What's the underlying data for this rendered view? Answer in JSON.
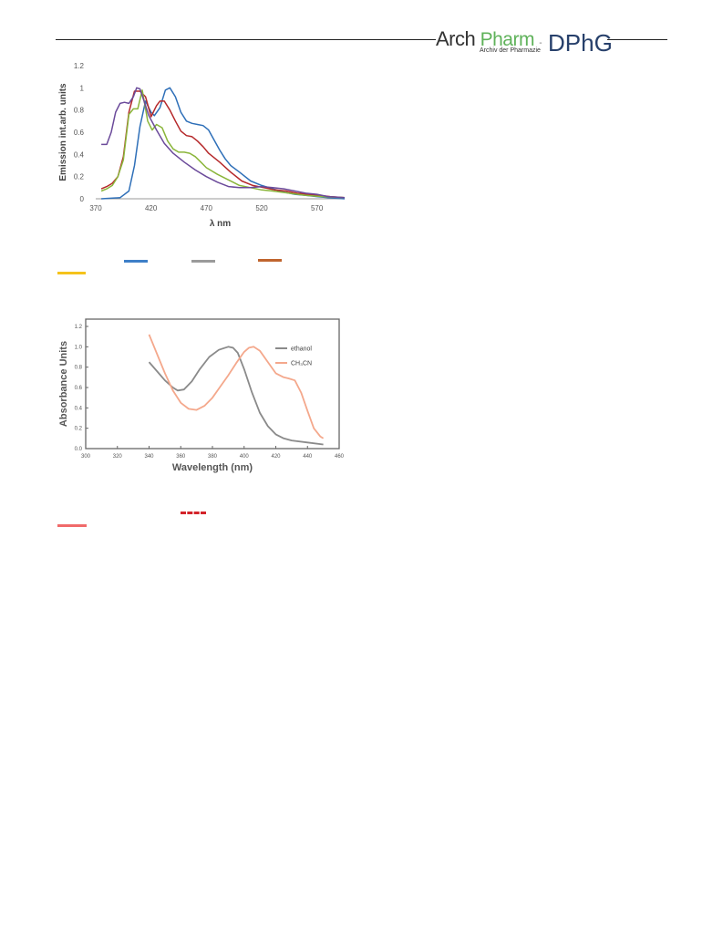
{
  "header": {
    "logo_arch": "Arch",
    "logo_pharm": "Pharm",
    "logo_dash": "-",
    "logo_dphg": "DPhG",
    "logo_subtitle": "Archiv der Pharmazie"
  },
  "chart_data": [
    {
      "type": "line",
      "xlabel": "λ nm",
      "ylabel": "Emission  int.arb. units",
      "xlim": [
        370,
        595
      ],
      "ylim": [
        0,
        1.2
      ],
      "xticks": [
        "370",
        "420",
        "470",
        "520",
        "570"
      ],
      "yticks": [
        "0",
        "0.2",
        "0.4",
        "0.6",
        "0.8",
        "1",
        "1.2"
      ],
      "grid": false,
      "series": [
        {
          "color": "#2e6fb8",
          "x": [
            375,
            392,
            400,
            405,
            410,
            415,
            420,
            423,
            428,
            433,
            437,
            442,
            447,
            452,
            457,
            462,
            467,
            472,
            477,
            482,
            487,
            492,
            500,
            510,
            520,
            530,
            540,
            550,
            560,
            570,
            580,
            595
          ],
          "y": [
            0.0,
            0.01,
            0.07,
            0.3,
            0.65,
            0.88,
            0.78,
            0.75,
            0.82,
            0.98,
            1.0,
            0.92,
            0.78,
            0.7,
            0.68,
            0.67,
            0.66,
            0.62,
            0.53,
            0.44,
            0.36,
            0.3,
            0.24,
            0.16,
            0.12,
            0.09,
            0.06,
            0.04,
            0.03,
            0.02,
            0.01,
            0.0
          ]
        },
        {
          "color": "#b5282a",
          "x": [
            375,
            380,
            385,
            390,
            395,
            400,
            405,
            410,
            415,
            420,
            425,
            428,
            432,
            437,
            442,
            447,
            452,
            457,
            462,
            467,
            472,
            482,
            492,
            502,
            512,
            522,
            532,
            542,
            552,
            562,
            572,
            582,
            595
          ],
          "y": [
            0.09,
            0.11,
            0.14,
            0.2,
            0.38,
            0.78,
            0.97,
            0.97,
            0.92,
            0.74,
            0.84,
            0.88,
            0.88,
            0.8,
            0.7,
            0.61,
            0.57,
            0.56,
            0.52,
            0.47,
            0.41,
            0.33,
            0.24,
            0.16,
            0.12,
            0.1,
            0.08,
            0.07,
            0.05,
            0.04,
            0.03,
            0.02,
            0.01
          ]
        },
        {
          "color": "#8ab53a",
          "x": [
            375,
            380,
            385,
            390,
            395,
            400,
            404,
            408,
            412,
            417,
            421,
            425,
            430,
            435,
            440,
            445,
            450,
            455,
            460,
            465,
            470,
            480,
            490,
            500,
            510,
            520,
            530,
            545,
            560,
            575,
            595
          ],
          "y": [
            0.07,
            0.09,
            0.12,
            0.2,
            0.35,
            0.76,
            0.81,
            0.81,
            0.98,
            0.7,
            0.62,
            0.67,
            0.64,
            0.52,
            0.45,
            0.42,
            0.42,
            0.41,
            0.38,
            0.33,
            0.28,
            0.22,
            0.17,
            0.12,
            0.1,
            0.08,
            0.07,
            0.05,
            0.03,
            0.02,
            0.01
          ]
        },
        {
          "color": "#6b4a9a",
          "x": [
            375,
            380,
            384,
            388,
            392,
            396,
            400,
            404,
            407,
            410,
            413,
            418,
            425,
            432,
            440,
            450,
            460,
            470,
            480,
            490,
            500,
            510,
            520,
            530,
            540,
            550,
            560,
            570,
            580,
            595
          ],
          "y": [
            0.49,
            0.49,
            0.6,
            0.78,
            0.86,
            0.87,
            0.86,
            0.92,
            1.0,
            0.99,
            0.9,
            0.75,
            0.62,
            0.5,
            0.41,
            0.33,
            0.26,
            0.2,
            0.15,
            0.11,
            0.1,
            0.1,
            0.11,
            0.1,
            0.09,
            0.07,
            0.05,
            0.04,
            0.02,
            0.01
          ]
        }
      ]
    },
    {
      "type": "line",
      "xlabel": "Wavelength (nm)",
      "ylabel": "Absorbance Units",
      "xlim": [
        300,
        460
      ],
      "ylim": [
        0,
        1.2
      ],
      "xticks": [
        "300",
        "320",
        "340",
        "360",
        "380",
        "400",
        "420",
        "440",
        "460"
      ],
      "yticks": [
        "0.0",
        "0.2",
        "0.4",
        "0.6",
        "0.8",
        "1.0",
        "1.2"
      ],
      "grid": false,
      "legend_position": "top-right",
      "series": [
        {
          "name": "ethanol",
          "color": "#8a8a8a",
          "x": [
            340,
            345,
            350,
            355,
            358,
            362,
            367,
            372,
            378,
            384,
            390,
            393,
            396,
            400,
            405,
            410,
            415,
            420,
            425,
            430,
            440,
            450
          ],
          "y": [
            0.85,
            0.76,
            0.67,
            0.6,
            0.57,
            0.58,
            0.66,
            0.78,
            0.9,
            0.97,
            1.0,
            0.99,
            0.94,
            0.78,
            0.55,
            0.35,
            0.22,
            0.14,
            0.1,
            0.08,
            0.06,
            0.04
          ]
        },
        {
          "name": "CH₃CN",
          "color": "#f4a88c",
          "x": [
            340,
            345,
            350,
            355,
            360,
            365,
            370,
            375,
            380,
            385,
            390,
            395,
            400,
            403,
            406,
            410,
            415,
            420,
            425,
            428,
            432,
            436,
            440,
            444,
            448,
            450
          ],
          "y": [
            1.12,
            0.93,
            0.74,
            0.57,
            0.45,
            0.39,
            0.38,
            0.42,
            0.5,
            0.61,
            0.72,
            0.84,
            0.95,
            0.99,
            1.0,
            0.96,
            0.85,
            0.74,
            0.7,
            0.69,
            0.67,
            0.55,
            0.37,
            0.2,
            0.12,
            0.1
          ]
        }
      ]
    }
  ],
  "legend_marks": {
    "fig1": [
      "#3d7fc8",
      "#9a9a9a",
      "#c0642e",
      "#f5c21b"
    ],
    "fig2": [
      "#d3232a",
      "#f06a6a"
    ]
  }
}
